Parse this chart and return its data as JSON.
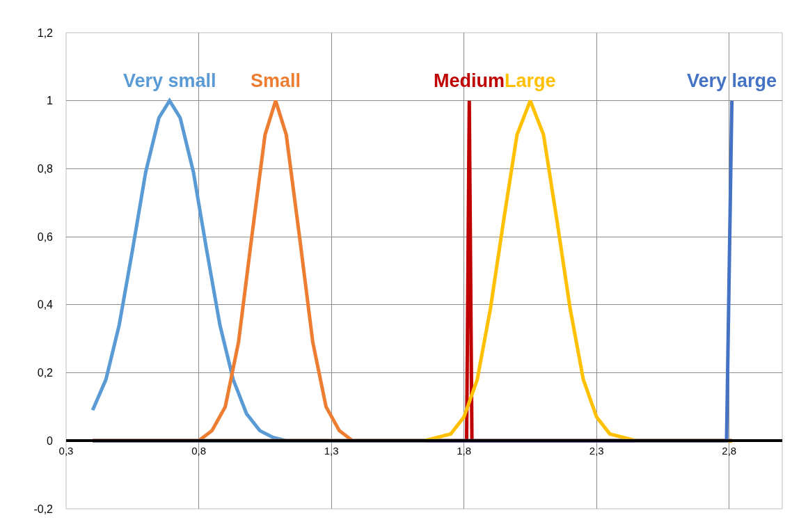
{
  "chart_data": {
    "type": "line",
    "xlim": [
      0.3,
      3.0
    ],
    "xticks": [
      {
        "value": 0.3,
        "label": "0,3"
      },
      {
        "value": 0.8,
        "label": "0,8"
      },
      {
        "value": 1.3,
        "label": "1,3"
      },
      {
        "value": 1.8,
        "label": "1,8"
      },
      {
        "value": 2.3,
        "label": "2,3"
      },
      {
        "value": 2.8,
        "label": "2,8"
      }
    ],
    "ylim": [
      -0.2,
      1.2
    ],
    "yticks": [
      {
        "value": -0.2,
        "label": "-0,2"
      },
      0,
      {
        "value": 0.2,
        "label": "0,2"
      },
      {
        "value": 0.4,
        "label": "0,4"
      },
      {
        "value": 0.6,
        "label": "0,6"
      },
      {
        "value": 0.8,
        "label": "0,8"
      },
      1,
      {
        "value": 1.2,
        "label": "1,2"
      }
    ],
    "grid": true,
    "legend": false,
    "marker": "none",
    "line_style": "solid",
    "series": [
      {
        "name": "Very small",
        "color": "#5b9bd5",
        "x": [
          0.4,
          0.45,
          0.5,
          0.55,
          0.6,
          0.65,
          0.69,
          0.73,
          0.78,
          0.83,
          0.88,
          0.93,
          0.98,
          1.03,
          1.08,
          1.13,
          1.2,
          2.81
        ],
        "values": [
          0.09,
          0.18,
          0.34,
          0.56,
          0.79,
          0.95,
          1,
          0.95,
          0.79,
          0.56,
          0.34,
          0.18,
          0.08,
          0.03,
          0.01,
          0,
          0,
          0
        ]
      },
      {
        "name": "Small",
        "color": "#ed7d31",
        "x": [
          0.4,
          0.8,
          0.85,
          0.9,
          0.95,
          1.0,
          1.05,
          1.09,
          1.13,
          1.18,
          1.23,
          1.28,
          1.33,
          1.38,
          1.45,
          2.81
        ],
        "values": [
          0,
          0,
          0.03,
          0.1,
          0.29,
          0.6,
          0.9,
          1,
          0.9,
          0.6,
          0.29,
          0.1,
          0.03,
          0,
          0,
          0
        ]
      },
      {
        "name": "Medium",
        "color": "#c00000",
        "x": [
          0.4,
          1.81,
          1.82,
          1.83,
          2.81
        ],
        "values": [
          0,
          0,
          1,
          0,
          0
        ]
      },
      {
        "name": "Large",
        "color": "#ffc000",
        "x": [
          0.4,
          1.65,
          1.7,
          1.75,
          1.8,
          1.85,
          1.9,
          1.95,
          2.0,
          2.05,
          2.1,
          2.15,
          2.2,
          2.25,
          2.3,
          2.35,
          2.4,
          2.45,
          2.81
        ],
        "values": [
          0,
          0,
          0.01,
          0.02,
          0.07,
          0.18,
          0.39,
          0.65,
          0.9,
          1,
          0.9,
          0.65,
          0.39,
          0.18,
          0.07,
          0.02,
          0.01,
          0,
          0
        ]
      },
      {
        "name": "Very large",
        "color": "#4472c4",
        "x": [
          0.4,
          2.79,
          2.81
        ],
        "values": [
          0,
          0,
          1
        ]
      }
    ]
  }
}
